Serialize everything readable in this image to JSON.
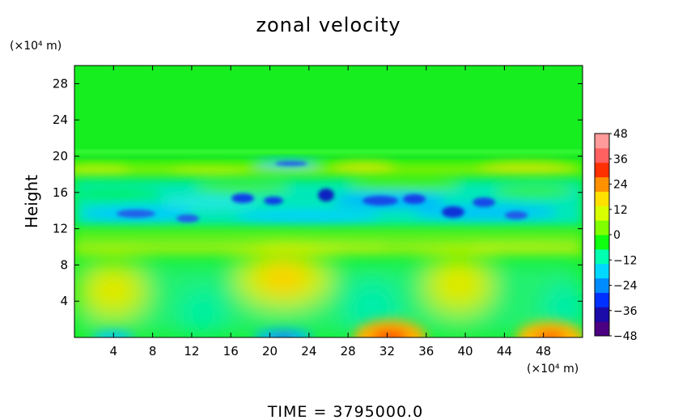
{
  "chart_data": {
    "type": "heatmap",
    "title": "zonal velocity",
    "ylabel": "Height",
    "y_unit": "(×10⁴ m)",
    "x_unit": "(×10⁴ m)",
    "footer": "TIME = 3795000.0",
    "xlim": [
      0,
      52
    ],
    "ylim": [
      0,
      30
    ],
    "x_ticks": [
      4,
      8,
      12,
      16,
      20,
      24,
      28,
      32,
      36,
      40,
      44,
      48
    ],
    "y_ticks": [
      4,
      8,
      12,
      16,
      20,
      24,
      28
    ],
    "colorbar": {
      "range": [
        -48,
        48
      ],
      "ticks": [
        48,
        36,
        24,
        12,
        0,
        -12,
        -24,
        -36,
        -48
      ],
      "tick_labels": [
        "48",
        "36",
        "24",
        "12",
        "0",
        "−12",
        "−24",
        "−36",
        "−48"
      ],
      "colors": [
        "#4b0082",
        "#1a0aa8",
        "#0030ff",
        "#008cff",
        "#00d8ff",
        "#00ffb0",
        "#10ff10",
        "#80ff00",
        "#d8ff00",
        "#ffe000",
        "#ff9000",
        "#ff3000",
        "#ff6060",
        "#ff9a9a"
      ]
    },
    "features": [
      {
        "name": "upper quiet layer",
        "x_range": [
          0,
          52
        ],
        "y_range": [
          20,
          30
        ],
        "value": 0
      },
      {
        "name": "jet band",
        "x_range": [
          0,
          52
        ],
        "y_range": [
          17.5,
          19
        ],
        "value": 12
      },
      {
        "name": "turbulent negative band",
        "x_range": [
          0,
          52
        ],
        "y_range": [
          12,
          17
        ],
        "value": -24
      },
      {
        "name": "positive band",
        "x_range": [
          0,
          52
        ],
        "y_range": [
          9,
          11
        ],
        "value": 12
      },
      {
        "name": "lower eddy",
        "x": 4,
        "y": 5,
        "value": 18
      },
      {
        "name": "lower eddy",
        "x": 21,
        "y": 6.5,
        "value": 26
      },
      {
        "name": "lower eddy",
        "x": 38.5,
        "y": 6,
        "value": 18
      },
      {
        "name": "surface maximum",
        "x": 32,
        "y": 0.5,
        "value": 36
      },
      {
        "name": "surface maximum",
        "x": 49,
        "y": 0.5,
        "value": 30
      },
      {
        "name": "surface minimum",
        "x": 4,
        "y": 0.3,
        "value": -20
      },
      {
        "name": "surface minimum",
        "x": 21,
        "y": 0.5,
        "value": -24
      }
    ]
  }
}
